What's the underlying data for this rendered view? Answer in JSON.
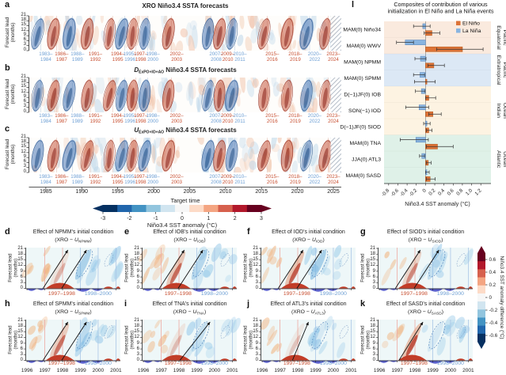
{
  "colors": {
    "el_nino_label": "#c85032",
    "la_nina_label": "#6d9fd4",
    "bar_el_nino": "#dd7337",
    "bar_la_nina": "#88b4e0",
    "band_equatorial_pacific": "#faeade",
    "band_extratropical_pacific": "#dce8f5",
    "band_indian_ocean": "#fdf3e2",
    "band_atlantic_ocean": "#dff1e8"
  },
  "hovmoller": {
    "ylabel": "Forecast lead (months)",
    "yticks": [
      0,
      3,
      6,
      9,
      12,
      15,
      18,
      21
    ],
    "xlabel": "Target time",
    "xticks": [
      1985,
      1990,
      1995,
      2000,
      2005,
      2010,
      2015,
      2020,
      2025
    ],
    "xrange": [
      1982.7,
      2026.1
    ],
    "panels": [
      {
        "label": "a",
        "title_pre": "XRO",
        "title_sub": "",
        "title_post": " Niño3.4 SSTA forecasts"
      },
      {
        "label": "b",
        "title_pre": "D",
        "title_sub": "ExPO+IO+AO",
        "title_post": " Niño3.4 SSTA forecasts"
      },
      {
        "label": "c",
        "title_pre": "U",
        "title_sub": "ExPO+IO+AO",
        "title_post": " Niño3.4 SSTA forecasts"
      }
    ],
    "events": [
      {
        "lines": [
          "1983–",
          "1984"
        ],
        "type": "la_nina",
        "x": 1985.0
      },
      {
        "lines": [
          "1986–",
          "1987"
        ],
        "type": "el_nino",
        "x": 1987.2
      },
      {
        "lines": [
          "1988–",
          "1989"
        ],
        "type": "la_nina",
        "x": 1989.4
      },
      {
        "lines": [
          "1991–",
          "1992"
        ],
        "type": "el_nino",
        "x": 1991.9
      },
      {
        "lines": [
          "1994–",
          "1995"
        ],
        "type": "el_nino",
        "x": 1995.0
      },
      {
        "lines": [
          "1995–",
          "1996"
        ],
        "type": "la_nina",
        "x": 1996.7
      },
      {
        "lines": [
          "1997–",
          "1998"
        ],
        "type": "el_nino",
        "x": 1998.2
      },
      {
        "lines": [
          "1998–",
          "2000"
        ],
        "type": "la_nina",
        "x": 1999.9
      },
      {
        "lines": [
          "2002–",
          "2003"
        ],
        "type": "el_nino",
        "x": 2003.2
      },
      {
        "lines": [
          "2007–",
          "2008"
        ],
        "type": "la_nina",
        "x": 2008.7
      },
      {
        "lines": [
          "2009–",
          "2010"
        ],
        "type": "el_nino",
        "x": 2010.3
      },
      {
        "lines": [
          "2010–",
          "2011"
        ],
        "type": "la_nina",
        "x": 2012.0
      },
      {
        "lines": [
          "2015–",
          "2016"
        ],
        "type": "el_nino",
        "x": 2016.5
      },
      {
        "lines": [
          "2018–",
          "2019"
        ],
        "type": "el_nino",
        "x": 2019.7
      },
      {
        "lines": [
          "2020–",
          "2022"
        ],
        "type": "la_nina",
        "x": 2022.4
      },
      {
        "lines": [
          "2023–",
          "2024"
        ],
        "type": "el_nino",
        "x": 2025.0
      }
    ],
    "colorbar": {
      "ticks": [
        -3,
        -2,
        -1,
        0,
        1,
        2,
        3
      ],
      "range": [
        -3,
        3
      ],
      "label": "Niño3.4 SST anomaly (°C)"
    }
  },
  "chart_data": {
    "type": "bar",
    "orientation": "horizontal",
    "title": [
      "Composites of contribution of various",
      "initialization in El Niño and La Niña events"
    ],
    "xlabel": "Niño3.4 SST anomaly (°C)",
    "xticks": [
      -0.8,
      -0.6,
      -0.4,
      -0.2,
      0,
      0.2,
      0.4,
      0.6,
      0.8,
      1.0,
      1.2
    ],
    "xlim": [
      -0.9,
      1.42
    ],
    "grid": false,
    "legend_position": "top-right",
    "categories": [
      "MAM(0) Niño34",
      "MAM(0) WWV",
      "MAM(0) NPMM",
      "MAM(0) SPMM",
      "D(−1)JF(0) IOB",
      "SON(−1) IOD",
      "D(−1)JF(0) SIOD",
      "MAM(0) TNA",
      "JJA(0) ATL3",
      "MAM(0) SASD"
    ],
    "groups": [
      {
        "name": "Equatorial Pacific",
        "rows": [
          0,
          1
        ],
        "band_color_key": "band_equatorial_pacific"
      },
      {
        "name": "Extratropical Pacific",
        "rows": [
          2,
          3
        ],
        "band_color_key": "band_extratropical_pacific"
      },
      {
        "name": "Indian Ocean",
        "rows": [
          4,
          6
        ],
        "band_color_key": "band_indian_ocean"
      },
      {
        "name": "Atlantic Ocean",
        "rows": [
          7,
          9
        ],
        "band_color_key": "band_atlantic_ocean"
      }
    ],
    "legend": [
      {
        "name": "El Niño",
        "color_key": "bar_el_nino"
      },
      {
        "name": "La Niña",
        "color_key": "bar_la_nina"
      }
    ],
    "series": [
      {
        "name": "La Niña",
        "color_key": "bar_la_nina",
        "values": [
          -0.06,
          -0.44,
          -0.11,
          -0.12,
          -0.09,
          -0.14,
          0.03,
          -0.21,
          -0.08,
          0.03
        ],
        "err_lo": [
          -0.26,
          -0.63,
          -0.23,
          -0.26,
          -0.22,
          -0.43,
          -0.04,
          -0.55,
          -0.13,
          0.0
        ],
        "err_hi": [
          0.1,
          -0.26,
          0.01,
          -0.02,
          -0.01,
          0.07,
          0.1,
          0.06,
          -0.02,
          0.08
        ]
      },
      {
        "name": "El Niño",
        "color_key": "bar_el_nino",
        "values": [
          0.14,
          0.8,
          0.18,
          0.03,
          0.07,
          0.16,
          0.07,
          0.26,
          0.06,
          0.1
        ],
        "err_lo": [
          -0.03,
          0.24,
          0.05,
          -0.24,
          0.0,
          0.07,
          0.02,
          0.02,
          0.02,
          0.02
        ],
        "err_hi": [
          0.31,
          1.25,
          0.41,
          0.21,
          0.22,
          0.34,
          0.14,
          0.6,
          0.12,
          0.21
        ]
      }
    ]
  },
  "effect_panels": {
    "ylabel": "Forecast lead (months)",
    "yticks": [
      0,
      3,
      6,
      9,
      12,
      15,
      18,
      21
    ],
    "xticks": [
      1996,
      1997,
      1998,
      1999,
      2000,
      2001
    ],
    "xrange": [
      1995.95,
      2001.25
    ],
    "event_red": {
      "label": "1997–1998",
      "x": 1997.95
    },
    "event_blue": {
      "label": "1998–2000",
      "x": 2000.0
    },
    "formula_pre": "(XRO − ",
    "formula_u": "U",
    "formula_post": ")",
    "panels": [
      {
        "label": "d",
        "title": "Effect of NPMM's initial condition",
        "u_sub": "NPMM"
      },
      {
        "label": "e",
        "title": "Effect of IOB's initial condition",
        "u_sub": "IOB"
      },
      {
        "label": "f",
        "title": "Effect of IOD's initial condition",
        "u_sub": "IOD"
      },
      {
        "label": "g",
        "title": "Effect of SIOD's initial condition",
        "u_sub": "SIOD"
      },
      {
        "label": "h",
        "title": "Effect of SPMM's initial condition",
        "u_sub": "SPMM"
      },
      {
        "label": "i",
        "title": "Effect of TNA's initial condition",
        "u_sub": "TNA"
      },
      {
        "label": "j",
        "title": "Effect of ATL3's initial condition",
        "u_sub": "ATL3"
      },
      {
        "label": "k",
        "title": "Effect of SASD's initial condition",
        "u_sub": "SASD"
      }
    ],
    "colorbar": {
      "ticks": [
        0.6,
        0.4,
        0.2,
        0,
        -0.2,
        -0.4,
        -0.6
      ],
      "range": [
        -0.7,
        0.7
      ],
      "label": "Niño3.4 SST anomaly difference (°C)"
    }
  }
}
